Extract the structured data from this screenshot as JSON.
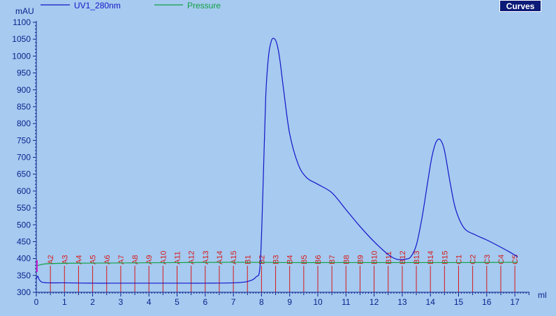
{
  "chart_data": {
    "type": "line",
    "ylabel": "mAU",
    "xlabel": "ml",
    "xlim": [
      0,
      17.5
    ],
    "ylim": [
      300,
      1100
    ],
    "y_ticks": [
      "300",
      "350",
      "400",
      "450",
      "500",
      "550",
      "600",
      "650",
      "700",
      "750",
      "800",
      "850",
      "900",
      "950",
      "1000",
      "1050",
      "1100"
    ],
    "x_ticks": [
      "0",
      "1",
      "2",
      "3",
      "4",
      "5",
      "6",
      "7",
      "8",
      "9",
      "10",
      "11",
      "12",
      "13",
      "14",
      "15",
      "16",
      "17"
    ],
    "series": [
      {
        "name": "UV1_280nm",
        "color": "#1414c8",
        "x": [
          0.0,
          0.05,
          0.1,
          0.2,
          0.4,
          1,
          2,
          3,
          4,
          5,
          6,
          7,
          7.5,
          7.8,
          7.95,
          8.05,
          8.15,
          8.25,
          8.35,
          8.45,
          8.55,
          8.65,
          8.8,
          9.0,
          9.3,
          9.6,
          10.0,
          10.5,
          11.0,
          11.5,
          12.0,
          12.5,
          12.8,
          13.1,
          13.3,
          13.5,
          13.7,
          13.9,
          14.05,
          14.2,
          14.35,
          14.5,
          14.7,
          14.9,
          15.2,
          15.6,
          16.0,
          16.4,
          16.8,
          17.1
        ],
        "y": [
          340,
          348,
          338,
          330,
          328,
          328,
          327,
          327,
          327,
          327,
          327,
          328,
          332,
          345,
          380,
          600,
          880,
          1000,
          1045,
          1052,
          1035,
          990,
          890,
          770,
          680,
          640,
          620,
          595,
          545,
          495,
          450,
          412,
          398,
          398,
          405,
          440,
          520,
          625,
          700,
          745,
          752,
          720,
          625,
          545,
          490,
          470,
          455,
          438,
          420,
          405
        ]
      },
      {
        "name": "Pressure",
        "color": "#10a040",
        "x": [
          0.0,
          0.3,
          1,
          3,
          5,
          7,
          9,
          11,
          13,
          15,
          17.1
        ],
        "y": [
          378,
          384,
          386,
          387,
          388,
          389,
          388,
          388,
          388,
          388,
          389
        ]
      }
    ],
    "fractions": [
      {
        "label": "A2",
        "x": 0.5
      },
      {
        "label": "A3",
        "x": 1.0
      },
      {
        "label": "A4",
        "x": 1.5
      },
      {
        "label": "A5",
        "x": 2.0
      },
      {
        "label": "A6",
        "x": 2.5
      },
      {
        "label": "A7",
        "x": 3.0
      },
      {
        "label": "A8",
        "x": 3.5
      },
      {
        "label": "A9",
        "x": 4.0
      },
      {
        "label": "A10",
        "x": 4.5
      },
      {
        "label": "A11",
        "x": 5.0
      },
      {
        "label": "A12",
        "x": 5.5
      },
      {
        "label": "A13",
        "x": 6.0
      },
      {
        "label": "A14",
        "x": 6.5
      },
      {
        "label": "A15",
        "x": 7.0
      },
      {
        "label": "B1",
        "x": 7.5
      },
      {
        "label": "B2",
        "x": 8.0
      },
      {
        "label": "B3",
        "x": 8.5
      },
      {
        "label": "B4",
        "x": 9.0
      },
      {
        "label": "B5",
        "x": 9.5
      },
      {
        "label": "B6",
        "x": 10.0
      },
      {
        "label": "B7",
        "x": 10.5
      },
      {
        "label": "B8",
        "x": 11.0
      },
      {
        "label": "B9",
        "x": 11.5
      },
      {
        "label": "B10",
        "x": 12.0
      },
      {
        "label": "B11",
        "x": 12.5
      },
      {
        "label": "B12",
        "x": 13.0
      },
      {
        "label": "B13",
        "x": 13.5
      },
      {
        "label": "B14",
        "x": 14.0
      },
      {
        "label": "B15",
        "x": 14.5
      },
      {
        "label": "C1",
        "x": 15.0
      },
      {
        "label": "C2",
        "x": 15.5
      },
      {
        "label": "C3",
        "x": 16.0
      },
      {
        "label": "C4",
        "x": 16.5
      },
      {
        "label": "C5",
        "x": 17.0
      }
    ],
    "fraction_color": "#d81818",
    "background": "#a6caf0",
    "axis_color": "#0a1f8a",
    "grid": false,
    "legend_position": "top-left"
  },
  "toolbar": {
    "curves_label": "Curves"
  }
}
